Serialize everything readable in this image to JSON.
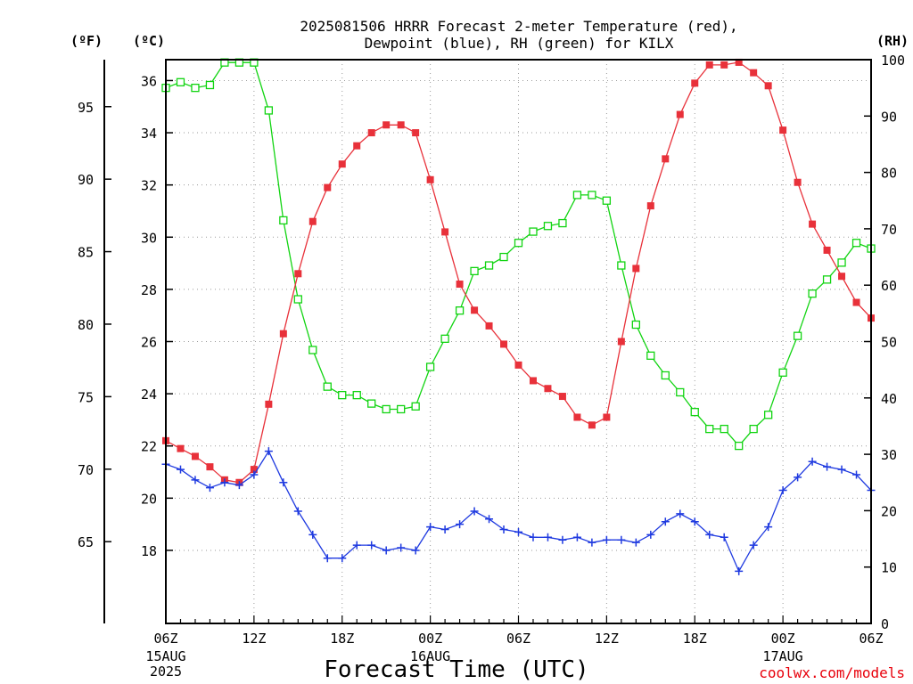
{
  "chart_data": {
    "type": "line",
    "title_lines": [
      "2025081506 HRRR Forecast 2-meter Temperature (red),",
      "Dewpoint (blue), RH (green) for KILX"
    ],
    "xlabel": "Forecast Time (UTC)",
    "credit": "coolwx.com/models",
    "unit_labels": {
      "fahrenheit": "(ºF)",
      "celsius": "(ºC)",
      "rh": "(RH)"
    },
    "x_axis": {
      "ticks": [
        {
          "hour": 0,
          "label": "06Z",
          "sub": [
            "15AUG",
            "2025"
          ]
        },
        {
          "hour": 6,
          "label": "12Z",
          "sub": []
        },
        {
          "hour": 12,
          "label": "18Z",
          "sub": []
        },
        {
          "hour": 18,
          "label": "00Z",
          "sub": [
            "16AUG"
          ]
        },
        {
          "hour": 24,
          "label": "06Z",
          "sub": []
        },
        {
          "hour": 30,
          "label": "12Z",
          "sub": []
        },
        {
          "hour": 36,
          "label": "18Z",
          "sub": []
        },
        {
          "hour": 42,
          "label": "00Z",
          "sub": [
            "17AUG"
          ]
        },
        {
          "hour": 48,
          "label": "06Z",
          "sub": []
        }
      ],
      "range_hours": [
        0,
        48
      ]
    },
    "y_celsius": {
      "range": [
        15.2,
        36.8
      ],
      "ticks": [
        18,
        20,
        22,
        24,
        26,
        28,
        30,
        32,
        34,
        36
      ]
    },
    "y_fahrenheit": {
      "ticks": [
        65,
        70,
        75,
        80,
        85,
        90,
        95
      ]
    },
    "y_rh": {
      "range": [
        0,
        100
      ],
      "ticks": [
        0,
        10,
        20,
        30,
        40,
        50,
        60,
        70,
        80,
        90,
        100
      ]
    },
    "grid": true,
    "colors": {
      "temperature": "#e8313a",
      "dewpoint": "#1f3ae0",
      "rh": "#11d411"
    },
    "series": [
      {
        "name": "Temperature",
        "units": "°C",
        "axis": "celsius",
        "marker": "filled-square",
        "x": [
          0,
          1,
          2,
          3,
          4,
          5,
          6,
          7,
          8,
          9,
          10,
          11,
          12,
          13,
          14,
          15,
          16,
          17,
          18,
          19,
          20,
          21,
          22,
          23,
          24,
          25,
          26,
          27,
          28,
          29,
          30,
          31,
          32,
          33,
          34,
          35,
          36,
          37,
          38,
          39,
          40,
          41,
          42,
          43,
          44,
          45,
          46,
          47,
          48
        ],
        "values": [
          22.2,
          21.9,
          21.6,
          21.2,
          20.7,
          20.6,
          21.1,
          23.6,
          26.3,
          28.6,
          30.6,
          31.9,
          32.8,
          33.5,
          34.0,
          34.3,
          34.3,
          34.0,
          32.2,
          30.2,
          28.2,
          27.2,
          26.6,
          25.9,
          25.1,
          24.5,
          24.2,
          23.9,
          23.1,
          22.8,
          23.1,
          26.0,
          28.8,
          31.2,
          33.0,
          34.7,
          35.9,
          36.6,
          36.6,
          36.7,
          36.3,
          35.8,
          34.1,
          32.1,
          30.5,
          29.5,
          28.5,
          27.5,
          26.9
        ]
      },
      {
        "name": "Dewpoint",
        "units": "°C",
        "axis": "celsius",
        "marker": "plus",
        "x": [
          0,
          1,
          2,
          3,
          4,
          5,
          6,
          7,
          8,
          9,
          10,
          11,
          12,
          13,
          14,
          15,
          16,
          17,
          18,
          19,
          20,
          21,
          22,
          23,
          24,
          25,
          26,
          27,
          28,
          29,
          30,
          31,
          32,
          33,
          34,
          35,
          36,
          37,
          38,
          39,
          40,
          41,
          42,
          43,
          44,
          45,
          46,
          47,
          48
        ],
        "values": [
          21.3,
          21.1,
          20.7,
          20.4,
          20.6,
          20.5,
          20.9,
          21.8,
          20.6,
          19.5,
          18.6,
          17.7,
          17.7,
          18.2,
          18.2,
          18.0,
          18.1,
          18.0,
          18.9,
          18.8,
          19.0,
          19.5,
          19.2,
          18.8,
          18.7,
          18.5,
          18.5,
          18.4,
          18.5,
          18.3,
          18.4,
          18.4,
          18.3,
          18.6,
          19.1,
          19.4,
          19.1,
          18.6,
          18.5,
          17.2,
          18.2,
          18.9,
          20.3,
          20.8,
          21.4,
          21.2,
          21.1,
          20.9,
          20.3
        ]
      },
      {
        "name": "RH",
        "units": "%",
        "axis": "rh",
        "marker": "open-square",
        "x": [
          0,
          1,
          2,
          3,
          4,
          5,
          6,
          7,
          8,
          9,
          10,
          11,
          12,
          13,
          14,
          15,
          16,
          17,
          18,
          19,
          20,
          21,
          22,
          23,
          24,
          25,
          26,
          27,
          28,
          29,
          30,
          31,
          32,
          33,
          34,
          35,
          36,
          37,
          38,
          39,
          40,
          41,
          42,
          43,
          44,
          45,
          46,
          47,
          48
        ],
        "values": [
          95,
          96,
          95,
          95.5,
          99.5,
          99.5,
          99.5,
          91,
          71.5,
          57.5,
          48.5,
          42,
          40.5,
          40.5,
          39,
          38,
          38,
          38.5,
          45.5,
          50.5,
          55.5,
          62.5,
          63.5,
          65,
          67.5,
          69.5,
          70.5,
          71,
          76,
          76,
          75,
          63.5,
          53,
          47.5,
          44,
          41,
          37.5,
          34.5,
          34.5,
          31.5,
          34.5,
          37,
          44.5,
          51,
          58.5,
          61,
          64,
          67.5,
          66.5
        ]
      }
    ]
  }
}
